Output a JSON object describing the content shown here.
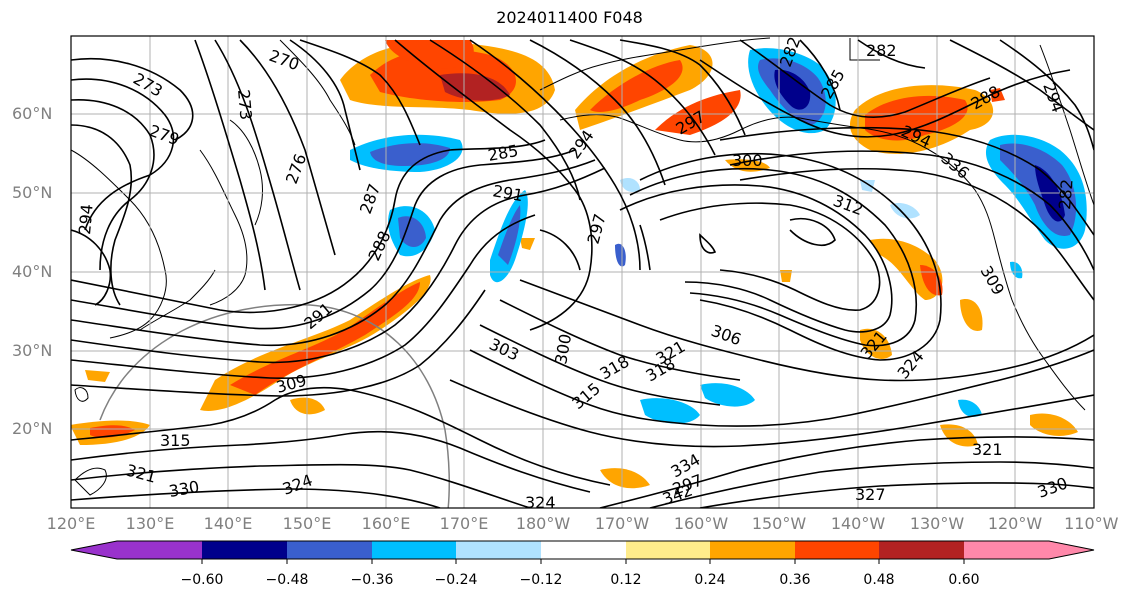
{
  "title": "2024011400 F048",
  "map": {
    "lat_labels": [
      "60°N",
      "50°N",
      "40°N",
      "30°N",
      "20°N"
    ],
    "lon_labels": [
      "120°E",
      "130°E",
      "140°E",
      "150°E",
      "160°E",
      "170°E",
      "180°W",
      "170°W",
      "160°W",
      "150°W",
      "140°W",
      "130°W",
      "120°W",
      "110°W"
    ],
    "contour_labels": [
      "270",
      "273",
      "273",
      "279",
      "276",
      "282",
      "285",
      "287",
      "288",
      "291",
      "291",
      "294",
      "294",
      "297",
      "297",
      "294",
      "300",
      "300",
      "303",
      "306",
      "309",
      "312",
      "315",
      "315",
      "318",
      "321",
      "321",
      "321",
      "321",
      "324",
      "324",
      "324",
      "327",
      "330",
      "334",
      "336",
      "342",
      "285",
      "282",
      "282",
      "288",
      "294",
      "297",
      "309",
      "318",
      "330"
    ]
  },
  "colorbar": {
    "tick_labels": [
      "−0.60",
      "−0.48",
      "−0.36",
      "−0.24",
      "−0.12",
      "0.12",
      "0.24",
      "0.36",
      "0.48",
      "0.60"
    ],
    "colors": [
      "#9932cc",
      "#00008b",
      "#3a5fcd",
      "#00bfff",
      "#b0e2ff",
      "#ffffff",
      "#ffec8b",
      "#ffa500",
      "#ff4500",
      "#b22222",
      "#ff88aa"
    ]
  }
}
